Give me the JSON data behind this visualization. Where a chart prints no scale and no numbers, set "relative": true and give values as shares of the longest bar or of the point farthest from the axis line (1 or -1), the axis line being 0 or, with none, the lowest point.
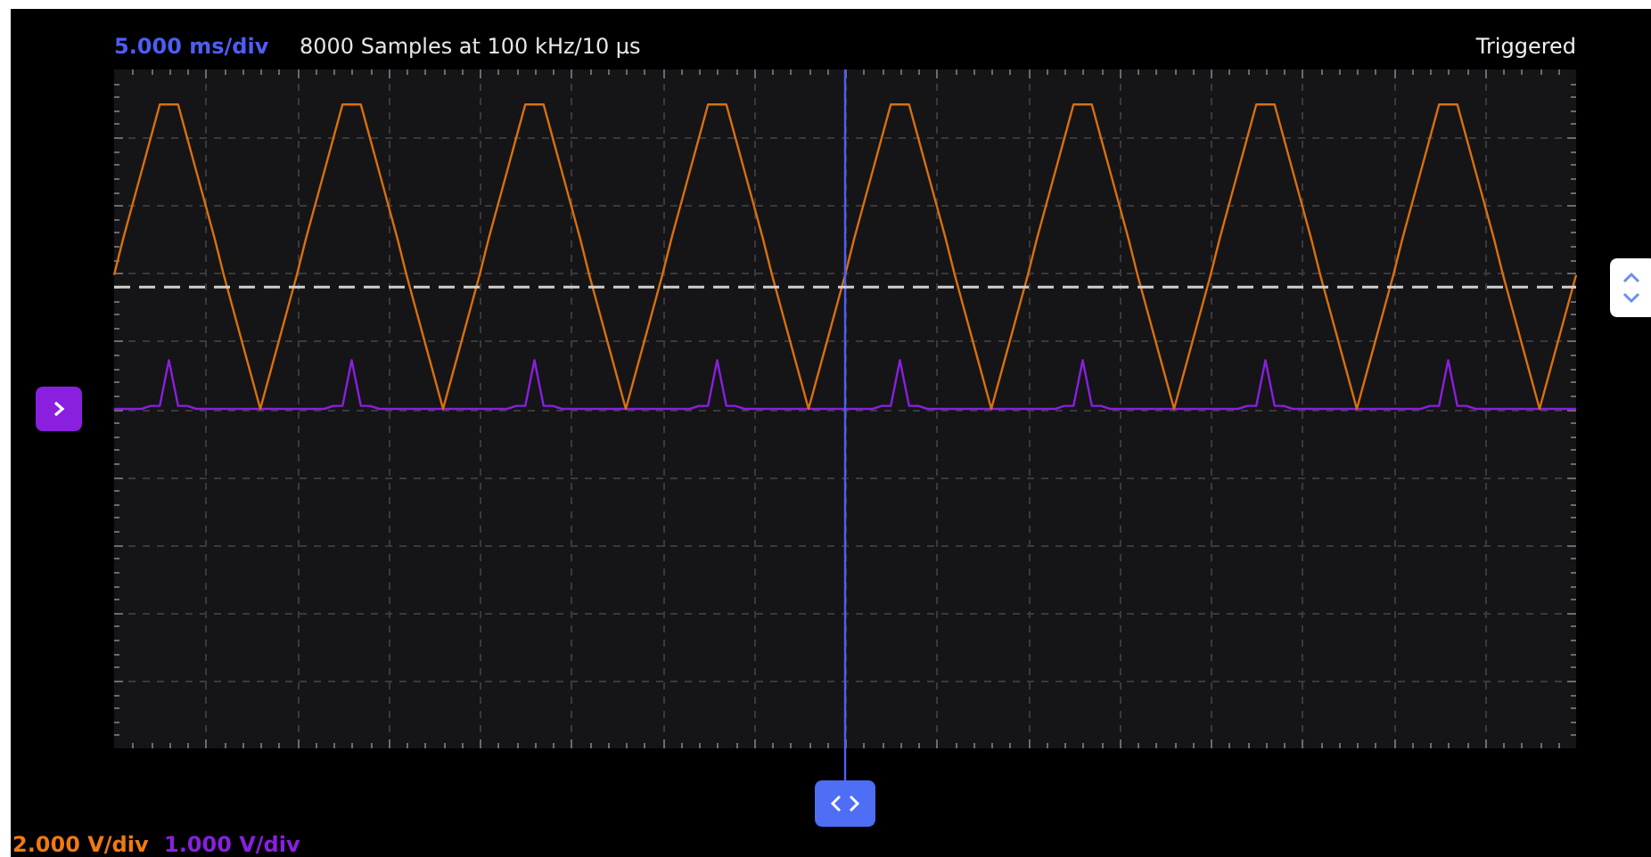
{
  "chart_data": {
    "type": "line",
    "title": "5.000 ms/div",
    "subtitle": "8000 Samples at 100 kHz/10 µs",
    "annotations": [
      "Triggered",
      "2.000 V/div",
      "1.000 V/div"
    ],
    "relative": true,
    "grid": true,
    "legend": false,
    "marker": "none",
    "line_style": "solid",
    "categories": [
      null,
      null,
      null,
      null,
      null,
      null,
      null,
      null,
      null,
      null,
      null,
      null,
      null,
      null,
      null,
      null,
      null,
      null,
      null,
      null,
      null,
      null,
      null,
      null,
      null,
      null,
      null,
      null,
      null,
      null,
      null,
      null,
      null,
      null,
      null,
      null,
      null,
      null,
      null,
      null,
      null,
      null,
      null,
      null,
      null,
      null,
      null,
      null,
      null,
      null,
      null,
      null,
      null,
      null,
      null,
      null,
      null,
      null,
      null,
      null,
      null,
      null,
      null,
      null,
      null,
      null,
      null,
      null,
      null,
      null,
      null,
      null,
      null,
      null,
      null,
      null,
      null,
      null,
      null,
      null,
      null,
      null,
      null,
      null,
      null,
      null,
      null,
      null,
      null,
      null,
      null,
      null,
      null,
      null,
      null,
      null,
      null,
      null,
      null,
      null,
      null,
      null,
      null,
      null,
      null,
      null,
      null,
      null,
      null,
      null,
      null,
      null,
      null,
      null,
      null,
      null,
      null,
      null,
      null,
      null,
      null,
      null,
      null,
      null,
      null,
      null,
      null,
      null,
      null,
      null,
      null,
      null,
      null,
      null,
      null,
      null,
      null,
      null,
      null,
      null,
      null,
      null,
      null,
      null,
      null,
      null,
      null,
      null,
      null,
      null,
      null,
      null,
      null,
      null,
      null,
      null,
      null,
      null,
      null,
      null,
      null
    ],
    "series": [
      {
        "color": "#d9700f",
        "values": [
          0.44,
          0.56,
          0.67,
          0.78,
          0.89,
          1,
          1,
          1,
          0.89,
          0.78,
          0.67,
          0.56,
          0.44,
          0.33,
          0.22,
          0.11,
          0,
          0.11,
          0.22,
          0.33,
          0.44,
          0.56,
          0.67,
          0.78,
          0.89,
          1,
          1,
          1,
          0.89,
          0.78,
          0.67,
          0.56,
          0.44,
          0.33,
          0.22,
          0.11,
          0,
          0.11,
          0.22,
          0.33,
          0.44,
          0.56,
          0.67,
          0.78,
          0.89,
          1,
          1,
          1,
          0.89,
          0.78,
          0.67,
          0.56,
          0.44,
          0.33,
          0.22,
          0.11,
          0,
          0.11,
          0.22,
          0.33,
          0.44,
          0.56,
          0.67,
          0.78,
          0.89,
          1,
          1,
          1,
          0.89,
          0.78,
          0.67,
          0.56,
          0.44,
          0.33,
          0.22,
          0.11,
          0,
          0.11,
          0.22,
          0.33,
          0.44,
          0.56,
          0.67,
          0.78,
          0.89,
          1,
          1,
          1,
          0.89,
          0.78,
          0.67,
          0.56,
          0.44,
          0.33,
          0.22,
          0.11,
          0,
          0.11,
          0.22,
          0.33,
          0.44,
          0.56,
          0.67,
          0.78,
          0.89,
          1,
          1,
          1,
          0.89,
          0.78,
          0.67,
          0.56,
          0.44,
          0.33,
          0.22,
          0.11,
          0,
          0.11,
          0.22,
          0.33,
          0.44,
          0.56,
          0.67,
          0.78,
          0.89,
          1,
          1,
          1,
          0.89,
          0.78,
          0.67,
          0.56,
          0.44,
          0.33,
          0.22,
          0.11,
          0,
          0.11,
          0.22,
          0.33,
          0.44,
          0.56,
          0.67,
          0.78,
          0.89,
          1,
          1,
          1,
          0.89,
          0.78,
          0.67,
          0.56,
          0.44,
          0.33,
          0.22,
          0.11,
          0,
          0.11,
          0.22,
          0.33,
          0.44
        ]
      },
      {
        "color": "#8a1fe0",
        "values": [
          0,
          0,
          0,
          0,
          0.01,
          0.01,
          0.16,
          0.01,
          0.01,
          0,
          0,
          0,
          0,
          0,
          0,
          0,
          0,
          0,
          0,
          0,
          0,
          0,
          0,
          0,
          0.01,
          0.01,
          0.16,
          0.01,
          0.01,
          0,
          0,
          0,
          0,
          0,
          0,
          0,
          0,
          0,
          0,
          0,
          0,
          0,
          0,
          0,
          0.01,
          0.01,
          0.16,
          0.01,
          0.01,
          0,
          0,
          0,
          0,
          0,
          0,
          0,
          0,
          0,
          0,
          0,
          0,
          0,
          0,
          0,
          0.01,
          0.01,
          0.16,
          0.01,
          0.01,
          0,
          0,
          0,
          0,
          0,
          0,
          0,
          0,
          0,
          0,
          0,
          0,
          0,
          0,
          0,
          0.01,
          0.01,
          0.16,
          0.01,
          0.01,
          0,
          0,
          0,
          0,
          0,
          0,
          0,
          0,
          0,
          0,
          0,
          0,
          0,
          0,
          0,
          0.01,
          0.01,
          0.16,
          0.01,
          0.01,
          0,
          0,
          0,
          0,
          0,
          0,
          0,
          0,
          0,
          0,
          0,
          0,
          0,
          0,
          0,
          0.01,
          0.01,
          0.16,
          0.01,
          0.01,
          0,
          0,
          0,
          0,
          0,
          0,
          0,
          0,
          0,
          0,
          0,
          0,
          0,
          0,
          0,
          0.01,
          0.01,
          0.16,
          0.01,
          0.01,
          0,
          0,
          0,
          0,
          0,
          0,
          0,
          0,
          0,
          0,
          0,
          0
        ]
      }
    ],
    "ref_lines": [
      {
        "axis": "y",
        "value": 0.4,
        "color": "#cfcfcf",
        "line_style": "dashed"
      }
    ]
  }
}
